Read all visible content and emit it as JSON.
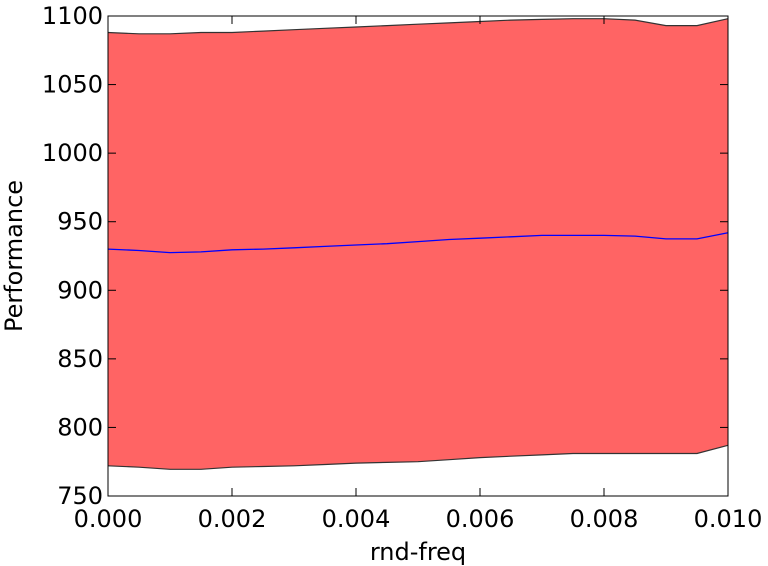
{
  "chart_data": {
    "type": "area",
    "title": "",
    "xlabel": "rnd-freq",
    "ylabel": "Performance",
    "xlim": [
      0.0,
      0.01
    ],
    "ylim": [
      750,
      1100
    ],
    "x_ticks": [
      "0.000",
      "0.002",
      "0.004",
      "0.006",
      "0.008",
      "0.010"
    ],
    "y_ticks": [
      "750",
      "800",
      "850",
      "900",
      "950",
      "1000",
      "1050",
      "1100"
    ],
    "grid": false,
    "legend": "none",
    "x": [
      0.0,
      0.0005,
      0.001,
      0.0015,
      0.002,
      0.0025,
      0.003,
      0.0035,
      0.004,
      0.0045,
      0.005,
      0.0055,
      0.006,
      0.0065,
      0.007,
      0.0075,
      0.008,
      0.0085,
      0.009,
      0.0095,
      0.01
    ],
    "series": [
      {
        "role": "mean",
        "color": "#0000ff",
        "values": [
          930,
          929,
          927.5,
          928,
          929.5,
          930,
          931,
          932,
          933,
          934,
          935.5,
          937,
          938,
          939,
          940,
          940,
          940,
          939.5,
          937.5,
          937.5,
          942
        ]
      },
      {
        "role": "upper",
        "color": "#333333",
        "values": [
          1088,
          1087,
          1087,
          1088,
          1088,
          1089,
          1090,
          1091,
          1092,
          1093,
          1094,
          1095,
          1096,
          1097,
          1097.5,
          1098,
          1098,
          1097,
          1093,
          1093,
          1098
        ]
      },
      {
        "role": "lower",
        "color": "#333333",
        "values": [
          772,
          771,
          769.5,
          769.5,
          771,
          771.5,
          772,
          773,
          774,
          774.5,
          775,
          776.5,
          778,
          779,
          780,
          781,
          781,
          781,
          781,
          781,
          787
        ]
      }
    ],
    "fill_color": "#ff6464"
  }
}
